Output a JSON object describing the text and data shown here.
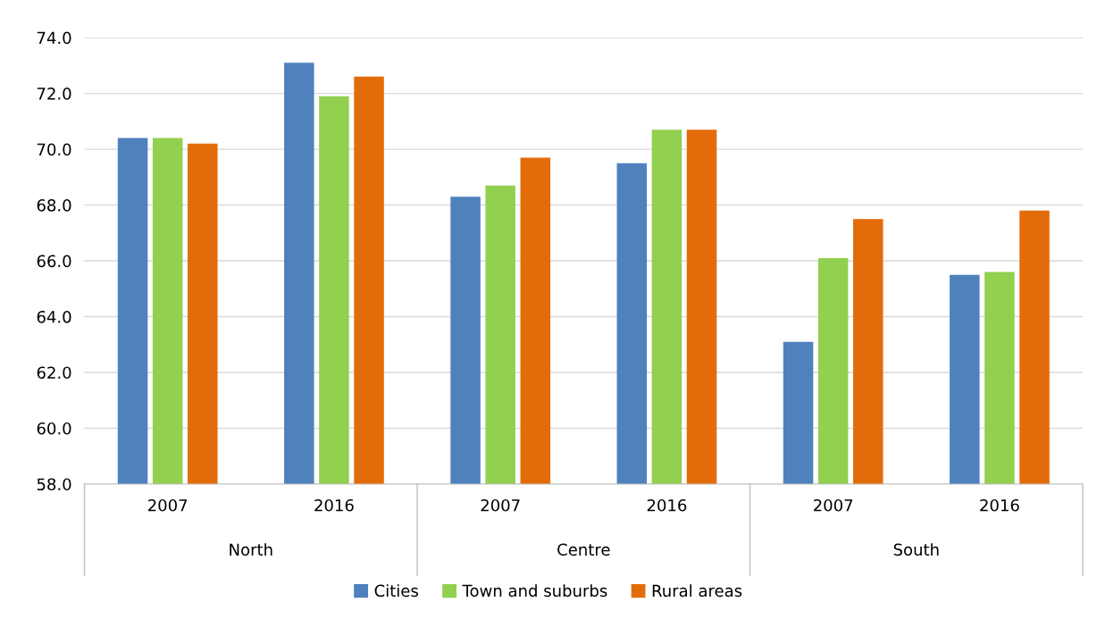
{
  "chart_data": {
    "type": "bar",
    "categories": [
      "2007",
      "2016",
      "2007",
      "2016",
      "2007",
      "2016"
    ],
    "series": [
      {
        "name": "Cities",
        "color": "#4f81bd",
        "values": [
          70.4,
          73.1,
          68.3,
          69.5,
          63.1,
          65.5
        ]
      },
      {
        "name": "Town and suburbs",
        "color": "#92d050",
        "values": [
          70.4,
          71.9,
          68.7,
          70.7,
          66.1,
          65.6
        ]
      },
      {
        "name": "Rural areas",
        "color": "#e36c0a",
        "values": [
          70.2,
          72.6,
          69.7,
          70.7,
          67.5,
          67.8
        ]
      }
    ],
    "annotations": [
      "North",
      "Centre",
      "South"
    ],
    "ylim": [
      58,
      74
    ],
    "yticks": [
      {
        "value": 58,
        "label": "58.0"
      },
      {
        "value": 60,
        "label": "60.0"
      },
      {
        "value": 62,
        "label": "62.0"
      },
      {
        "value": 64,
        "label": "64.0"
      },
      {
        "value": 66,
        "label": "66.0"
      },
      {
        "value": 68,
        "label": "68.0"
      },
      {
        "value": 70,
        "label": "70.0"
      },
      {
        "value": 72,
        "label": "72.0"
      },
      {
        "value": 74,
        "label": "74.0"
      }
    ],
    "grid": "y",
    "legend": "bottom"
  }
}
